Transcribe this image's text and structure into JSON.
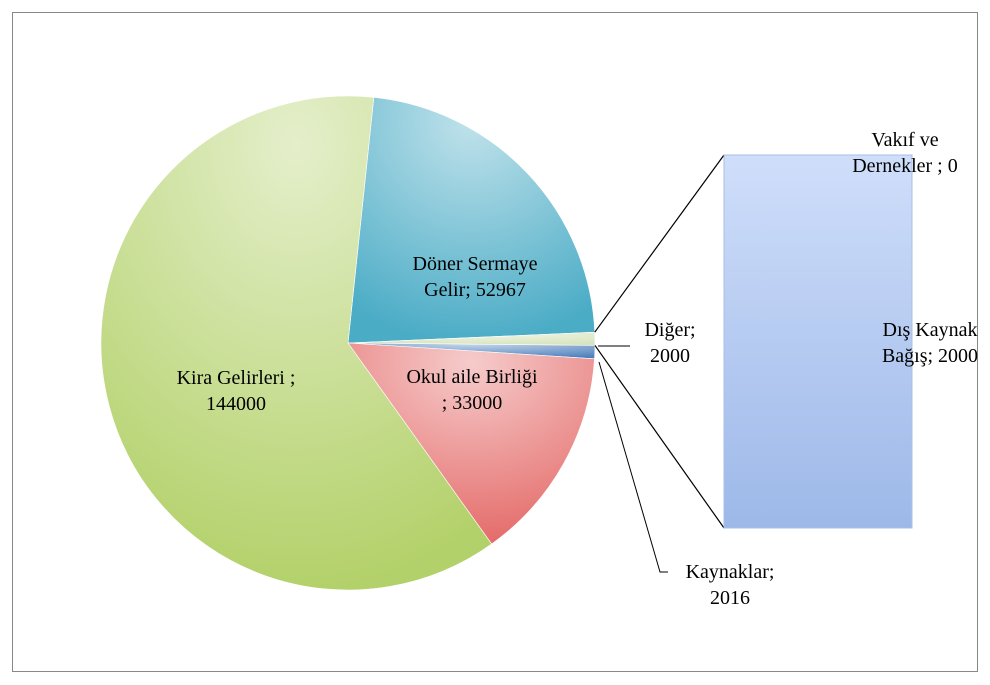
{
  "chart_data": {
    "type": "bar_of_pie",
    "pie": {
      "value_labels": [
        "Döner Sermaye Gelir; 52967",
        "Diğer; 2000",
        "Kaynaklar; 2016",
        "Okul aile Birliği ; 33000",
        "Kira Gelirleri ; 144000"
      ],
      "values": [
        52967,
        2000,
        2016,
        33000,
        144000
      ],
      "colors": [
        "#4bacc6",
        "#d7e4bd",
        "#4f81bd",
        "#e46c6a",
        "#b3d16a"
      ]
    },
    "bar": {
      "value_labels": [
        "Vakıf ve Dernekler ; 0",
        "Dış Kaynak Bağış; 2000"
      ],
      "values": [
        0,
        2000
      ],
      "color": "#b9cef2"
    }
  }
}
